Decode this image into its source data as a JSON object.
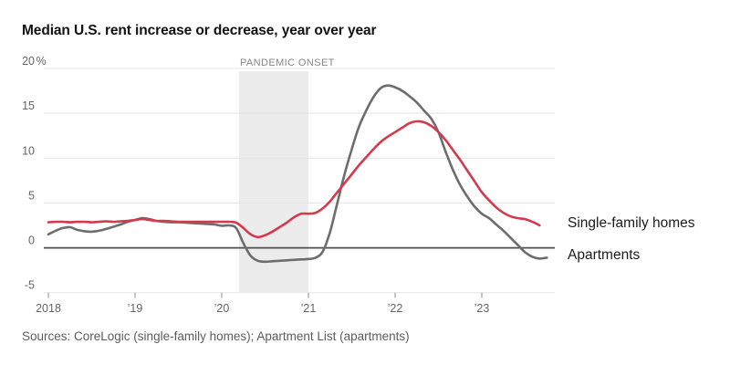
{
  "chart_data": {
    "type": "line",
    "title": "Median U.S. rent increase or decrease, year over year",
    "xlabel": "",
    "ylabel": "",
    "ylim": [
      -5,
      20
    ],
    "grid": "horizontal",
    "legend_position": "direct-label-right",
    "x_unit": "months since Jan 2018",
    "x_ticks": [
      {
        "label": "2018",
        "month": 0
      },
      {
        "label": "’19",
        "month": 12
      },
      {
        "label": "’20",
        "month": 24
      },
      {
        "label": "’21",
        "month": 36
      },
      {
        "label": "’22",
        "month": 48
      },
      {
        "label": "’23",
        "month": 60
      }
    ],
    "y_ticks": [
      {
        "value": 20,
        "label": "20",
        "suffix": "%"
      },
      {
        "value": 15,
        "label": "15",
        "suffix": ""
      },
      {
        "value": 10,
        "label": "10",
        "suffix": ""
      },
      {
        "value": 5,
        "label": "5",
        "suffix": ""
      },
      {
        "value": 0,
        "label": "0",
        "suffix": ""
      },
      {
        "value": -5,
        "label": "-5",
        "suffix": ""
      }
    ],
    "band": {
      "label": "PANDEMIC ONSET",
      "from_month": 26.4,
      "to_month": 36
    },
    "series": [
      {
        "name": "Single-family homes",
        "color": "#d23b4e",
        "start_month": 0,
        "values": [
          2.85,
          2.9,
          2.9,
          2.85,
          2.9,
          2.9,
          2.85,
          2.9,
          2.95,
          2.9,
          2.95,
          3.0,
          3.1,
          3.2,
          3.1,
          3.0,
          3.0,
          2.95,
          2.9,
          2.9,
          2.9,
          2.9,
          2.9,
          2.9,
          2.9,
          2.9,
          2.8,
          2.2,
          1.5,
          1.2,
          1.4,
          1.8,
          2.3,
          2.8,
          3.4,
          3.8,
          3.8,
          3.9,
          4.4,
          5.2,
          6.2,
          7.2,
          8.2,
          9.2,
          10.1,
          11.0,
          11.8,
          12.4,
          12.9,
          13.4,
          13.9,
          14.1,
          14.0,
          13.6,
          12.9,
          12.0,
          10.9,
          9.8,
          8.6,
          7.4,
          6.2,
          5.3,
          4.5,
          3.9,
          3.5,
          3.3,
          3.2,
          2.9,
          2.5
        ]
      },
      {
        "name": "Apartments",
        "color": "#6d6d6d",
        "start_month": 0,
        "values": [
          1.5,
          1.9,
          2.2,
          2.3,
          2.0,
          1.85,
          1.8,
          1.9,
          2.1,
          2.35,
          2.6,
          2.9,
          3.1,
          3.3,
          3.2,
          3.0,
          2.9,
          2.85,
          2.85,
          2.8,
          2.75,
          2.7,
          2.65,
          2.6,
          2.45,
          2.5,
          2.2,
          0.5,
          -0.9,
          -1.45,
          -1.55,
          -1.5,
          -1.45,
          -1.4,
          -1.35,
          -1.3,
          -1.25,
          -1.1,
          -0.4,
          1.8,
          5.0,
          8.2,
          11.0,
          13.5,
          15.3,
          16.8,
          17.8,
          18.1,
          17.9,
          17.5,
          16.9,
          16.2,
          15.3,
          14.4,
          12.9,
          10.7,
          8.7,
          7.0,
          5.7,
          4.6,
          3.8,
          3.3,
          2.6,
          1.9,
          1.1,
          0.3,
          -0.5,
          -1.0,
          -1.2,
          -1.1
        ]
      }
    ]
  },
  "footer": {
    "source": "Sources: CoreLogic (single-family homes); Apartment List (apartments)"
  }
}
